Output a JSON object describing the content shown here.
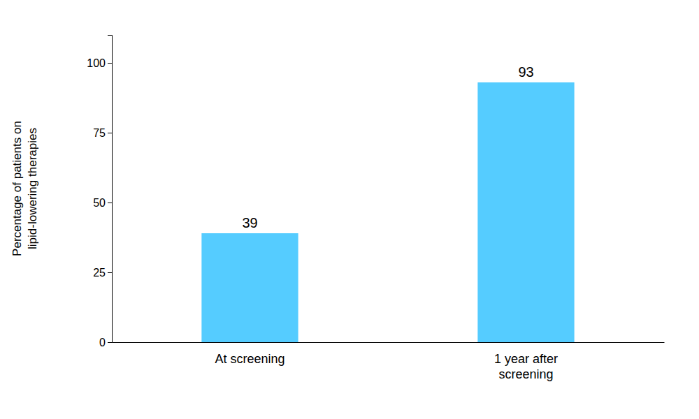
{
  "chart_data": {
    "type": "bar",
    "categories": [
      "At screening",
      "1 year after\nscreening"
    ],
    "values": [
      39,
      93
    ],
    "color": "#55CCFF",
    "ylabel": "Percentage of patients on\nlipid-lowering therapies",
    "ylim": [
      0,
      110
    ],
    "yticks": [
      0,
      25,
      50,
      75,
      100
    ],
    "grid": false,
    "data_labels": true
  }
}
